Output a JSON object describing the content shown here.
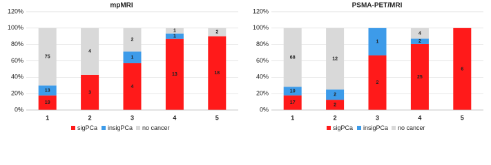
{
  "chart_data": [
    {
      "type": "stacked_percent_bar",
      "title": "mpMRI",
      "categories": [
        "1",
        "2",
        "3",
        "4",
        "5"
      ],
      "ylim": [
        0,
        120
      ],
      "yticks": [
        {
          "value": 0,
          "label": "0%"
        },
        {
          "value": 20,
          "label": "20%"
        },
        {
          "value": 40,
          "label": "40%"
        },
        {
          "value": 60,
          "label": "60%"
        },
        {
          "value": 80,
          "label": "80%"
        },
        {
          "value": 100,
          "label": "100%"
        },
        {
          "value": 120,
          "label": "120%"
        }
      ],
      "grid": true,
      "legend": "bottom",
      "series": [
        {
          "name": "sigPCa",
          "color": "#ff1a1a",
          "values": [
            17.8,
            42.9,
            57.1,
            86.7,
            90
          ],
          "counts": [
            19,
            3,
            4,
            13,
            18
          ]
        },
        {
          "name": "insigPCa",
          "color": "#3d9be9",
          "values": [
            12.1,
            null,
            14.3,
            6.7,
            null
          ],
          "counts": [
            13,
            null,
            1,
            1,
            null
          ]
        },
        {
          "name": "no cancer",
          "color": "#d9d9d9",
          "values": [
            70.1,
            57.1,
            28.6,
            6.7,
            10
          ],
          "counts": [
            75,
            4,
            2,
            1,
            2
          ]
        }
      ]
    },
    {
      "type": "stacked_percent_bar",
      "title": "PSMA-PET/MRI",
      "categories": [
        "1",
        "2",
        "3",
        "4",
        "5"
      ],
      "ylim": [
        0,
        120
      ],
      "yticks": [
        {
          "value": 0,
          "label": "0%"
        },
        {
          "value": 20,
          "label": "20%"
        },
        {
          "value": 40,
          "label": "40%"
        },
        {
          "value": 60,
          "label": "60%"
        },
        {
          "value": 80,
          "label": "80%"
        },
        {
          "value": 100,
          "label": "100%"
        },
        {
          "value": 120,
          "label": "120%"
        }
      ],
      "grid": true,
      "legend": "bottom",
      "series": [
        {
          "name": "sigPCa",
          "color": "#ff1a1a",
          "values": [
            17.9,
            12.5,
            66.7,
            80.6,
            100
          ],
          "counts": [
            17,
            2,
            2,
            25,
            6
          ]
        },
        {
          "name": "insigPCa",
          "color": "#3d9be9",
          "values": [
            10.5,
            12.5,
            33.3,
            6.5,
            null
          ],
          "counts": [
            10,
            2,
            1,
            2,
            null
          ]
        },
        {
          "name": "no cancer",
          "color": "#d9d9d9",
          "values": [
            71.6,
            75,
            null,
            12.9,
            null
          ],
          "counts": [
            68,
            12,
            null,
            4,
            null
          ]
        }
      ]
    }
  ]
}
